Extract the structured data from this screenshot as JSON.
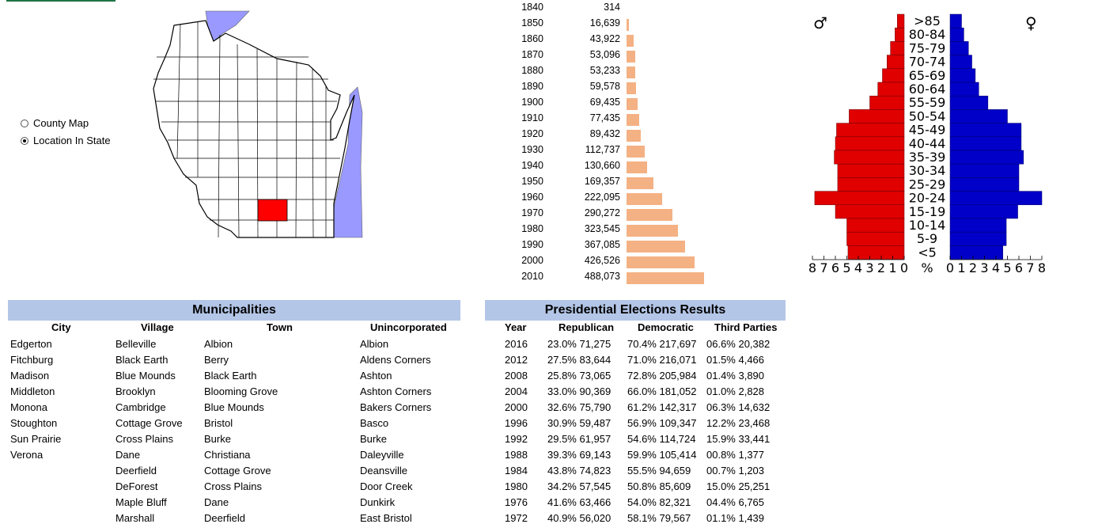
{
  "radio_options": [
    {
      "label": "County Map",
      "selected": false
    },
    {
      "label": "Location In State",
      "selected": true
    }
  ],
  "population": {
    "rows": [
      {
        "year": "1840",
        "value": "314",
        "n": 314
      },
      {
        "year": "1850",
        "value": "16,639",
        "n": 16639
      },
      {
        "year": "1860",
        "value": "43,922",
        "n": 43922
      },
      {
        "year": "1870",
        "value": "53,096",
        "n": 53096
      },
      {
        "year": "1880",
        "value": "53,233",
        "n": 53233
      },
      {
        "year": "1890",
        "value": "59,578",
        "n": 59578
      },
      {
        "year": "1900",
        "value": "69,435",
        "n": 69435
      },
      {
        "year": "1910",
        "value": "77,435",
        "n": 77435
      },
      {
        "year": "1920",
        "value": "89,432",
        "n": 89432
      },
      {
        "year": "1930",
        "value": "112,737",
        "n": 112737
      },
      {
        "year": "1940",
        "value": "130,660",
        "n": 130660
      },
      {
        "year": "1950",
        "value": "169,357",
        "n": 169357
      },
      {
        "year": "1960",
        "value": "222,095",
        "n": 222095
      },
      {
        "year": "1970",
        "value": "290,272",
        "n": 290272
      },
      {
        "year": "1980",
        "value": "323,545",
        "n": 323545
      },
      {
        "year": "1990",
        "value": "367,085",
        "n": 367085
      },
      {
        "year": "2000",
        "value": "426,526",
        "n": 426526
      },
      {
        "year": "2010",
        "value": "488,073",
        "n": 488073
      }
    ],
    "bar_color": "#f4b183"
  },
  "pyramid": {
    "male_symbol": "♂",
    "female_symbol": "♀",
    "age_groups": [
      ">85",
      "80-84",
      "75-79",
      "70-74",
      "65-69",
      "60-64",
      "55-59",
      "50-54",
      "45-49",
      "40-44",
      "35-39",
      "30-34",
      "25-29",
      "20-24",
      "15-19",
      "10-14",
      "5-9",
      "<5"
    ],
    "male_pct": [
      0.6,
      0.8,
      1.2,
      1.5,
      1.9,
      2.3,
      3.0,
      4.8,
      5.9,
      6.0,
      6.1,
      5.8,
      5.8,
      7.8,
      6.0,
      5.0,
      5.0,
      4.9
    ],
    "female_pct": [
      1.0,
      1.2,
      1.6,
      1.9,
      2.2,
      2.5,
      3.3,
      5.0,
      6.2,
      6.2,
      6.4,
      6.0,
      6.0,
      8.0,
      5.9,
      4.9,
      4.9,
      4.6
    ],
    "male_color": "#e00000",
    "female_color": "#0000c8",
    "axis_left": [
      "8",
      "7",
      "6",
      "5",
      "4",
      "3",
      "2",
      "1",
      "0"
    ],
    "axis_unit": "%",
    "axis_right": [
      "0",
      "1",
      "2",
      "3",
      "4",
      "5",
      "6",
      "7",
      "8"
    ]
  },
  "municipalities": {
    "title": "Municipalities",
    "headers": {
      "city": "City",
      "village": "Village",
      "town": "Town",
      "unincorporated": "Unincorporated"
    },
    "city": [
      "Edgerton",
      "Fitchburg",
      "Madison",
      "Middleton",
      "Monona",
      "Stoughton",
      "Sun Prairie",
      "Verona"
    ],
    "village": [
      "Belleville",
      "Black Earth",
      "Blue Mounds",
      "Brooklyn",
      "Cambridge",
      "Cottage Grove",
      "Cross Plains",
      "Dane",
      "Deerfield",
      "DeForest",
      "Maple Bluff",
      "Marshall"
    ],
    "town": [
      "Albion",
      "Berry",
      "Black Earth",
      "Blooming Grove",
      "Blue Mounds",
      "Bristol",
      "Burke",
      "Christiana",
      "Cottage Grove",
      "Cross Plains",
      "Dane",
      "Deerfield"
    ],
    "unincorporated": [
      "Albion",
      "Aldens Corners",
      "Ashton",
      "Ashton Corners",
      "Bakers Corners",
      "Basco",
      "Burke",
      "Daleyville",
      "Deansville",
      "Door Creek",
      "Dunkirk",
      "East Bristol"
    ]
  },
  "elections": {
    "title": "Presidential Elections Results",
    "headers": {
      "year": "Year",
      "republican": "Republican",
      "democratic": "Democratic",
      "third": "Third Parties"
    },
    "rows": [
      {
        "year": "2016",
        "rep": "23.0% 71,275",
        "dem": "70.4% 217,697",
        "third": "06.6% 20,382"
      },
      {
        "year": "2012",
        "rep": "27.5% 83,644",
        "dem": "71.0% 216,071",
        "third": "01.5% 4,466"
      },
      {
        "year": "2008",
        "rep": "25.8% 73,065",
        "dem": "72.8% 205,984",
        "third": "01.4% 3,890"
      },
      {
        "year": "2004",
        "rep": "33.0% 90,369",
        "dem": "66.0% 181,052",
        "third": "01.0% 2,828"
      },
      {
        "year": "2000",
        "rep": "32.6% 75,790",
        "dem": "61.2% 142,317",
        "third": "06.3% 14,632"
      },
      {
        "year": "1996",
        "rep": "30.9% 59,487",
        "dem": "56.9% 109,347",
        "third": "12.2% 23,468"
      },
      {
        "year": "1992",
        "rep": "29.5% 61,957",
        "dem": "54.6% 114,724",
        "third": "15.9% 33,441"
      },
      {
        "year": "1988",
        "rep": "39.3% 69,143",
        "dem": "59.9% 105,414",
        "third": "00.8% 1,377"
      },
      {
        "year": "1984",
        "rep": "43.8% 74,823",
        "dem": "55.5% 94,659",
        "third": "00.7% 1,203"
      },
      {
        "year": "1980",
        "rep": "34.2% 57,545",
        "dem": "50.8% 85,609",
        "third": "15.0% 25,251"
      },
      {
        "year": "1976",
        "rep": "41.6% 63,466",
        "dem": "54.0% 82,321",
        "third": "04.4% 6,765"
      },
      {
        "year": "1972",
        "rep": "40.9% 56,020",
        "dem": "58.1% 79,567",
        "third": "01.1% 1,439"
      }
    ]
  },
  "colors": {
    "header_band": "#b4c6e7",
    "map_highlight": "#ff0000",
    "lake": "#9999ff"
  }
}
